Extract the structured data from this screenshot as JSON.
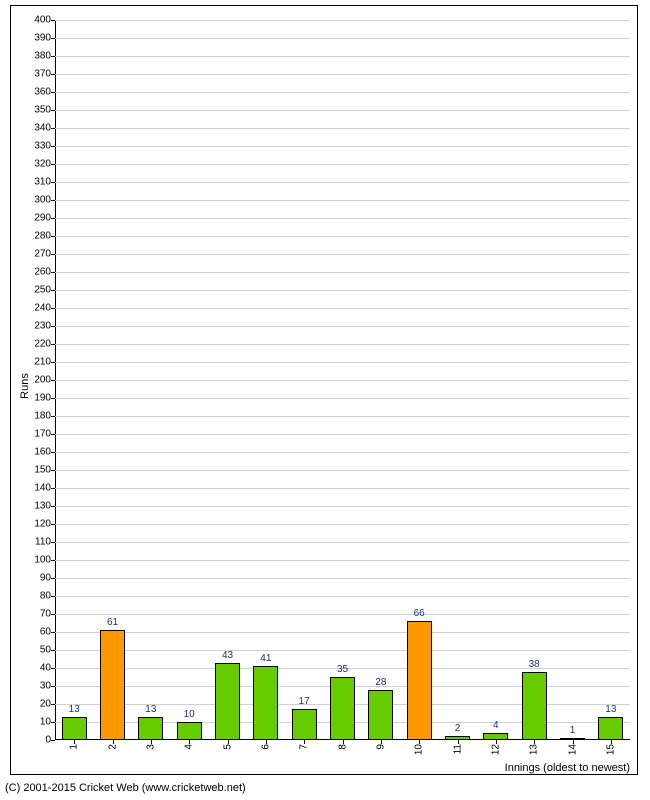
{
  "chart": {
    "type": "bar",
    "ylim": [
      0,
      400
    ],
    "ytick_step": 10,
    "y_axis_title": "Runs",
    "x_axis_title": "Innings (oldest to newest)",
    "copyright": "(C) 2001-2015 Cricket Web (www.cricketweb.net)",
    "background_color": "#ffffff",
    "grid_color": "#d0d0d0",
    "axis_color": "#000000",
    "tick_fontsize": 10,
    "tick_font_color": "#000000",
    "label_fontsize": 11,
    "value_label_color": "#183773",
    "bar_border_color": "#000000",
    "bar_width_ratio": 0.65,
    "categories": [
      "1",
      "2",
      "3",
      "4",
      "5",
      "6",
      "7",
      "8",
      "9",
      "10",
      "11",
      "12",
      "13",
      "14",
      "15"
    ],
    "values": [
      13,
      61,
      13,
      10,
      43,
      41,
      17,
      35,
      28,
      66,
      2,
      4,
      38,
      1,
      13
    ],
    "bar_colors": [
      "#66cc00",
      "#ff9900",
      "#66cc00",
      "#66cc00",
      "#66cc00",
      "#66cc00",
      "#66cc00",
      "#66cc00",
      "#66cc00",
      "#ff9900",
      "#66cc00",
      "#66cc00",
      "#66cc00",
      "#66cc00",
      "#66cc00"
    ]
  }
}
